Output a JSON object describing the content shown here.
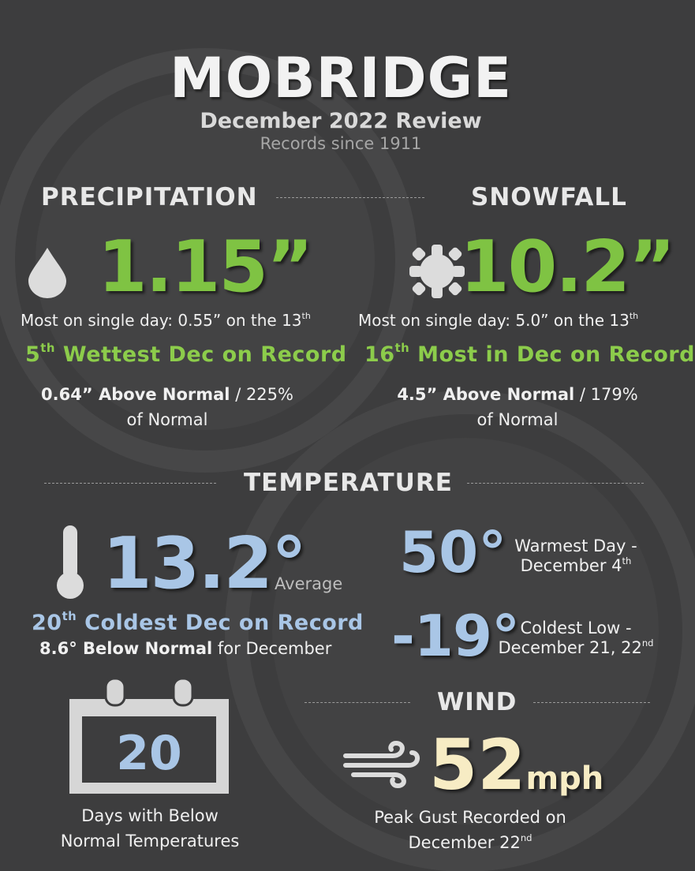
{
  "header": {
    "title": "MOBRIDGE",
    "subtitle": "December 2022 Review",
    "records": "Records since 1911"
  },
  "precipitation": {
    "heading": "PRECIPITATION",
    "value": "1.15”",
    "single_day_prefix": "Most on single day: 0.55” on the 13",
    "single_day_suffix": "th",
    "rank_num": "5",
    "rank_sup": "th",
    "rank_text": " Wettest Dec on Record",
    "above_bold": "0.64” Above Normal",
    "above_rest": " / 225%",
    "of_normal": "of Normal"
  },
  "snowfall": {
    "heading": "SNOWFALL",
    "value": "10.2”",
    "single_day_prefix": "Most on single day: 5.0” on the 13",
    "single_day_suffix": "th",
    "rank_num": "16",
    "rank_sup": "th",
    "rank_text": " Most in Dec on Record",
    "above_bold": "4.5” Above Normal",
    "above_rest": " / 179%",
    "of_normal": "of Normal"
  },
  "temperature": {
    "heading": "TEMPERATURE",
    "average_value": "13.2°",
    "average_label": "Average",
    "rank_num": "20",
    "rank_sup": "th",
    "rank_text": " Coldest Dec on Record",
    "below_bold": "8.6° Below Normal",
    "below_rest": " for December",
    "warmest_value": "50°",
    "warmest_label_1": "Warmest Day -",
    "warmest_label_2": "December 4",
    "warmest_sup": "th",
    "coldest_value": "-19°",
    "coldest_label_1": "Coldest Low -",
    "coldest_label_2": "December 21, 22",
    "coldest_sup": "nd"
  },
  "below_normal_days": {
    "value": "20",
    "label_1": "Days with Below",
    "label_2": "Normal Temperatures"
  },
  "wind": {
    "heading": "WIND",
    "value": "52",
    "unit": "mph",
    "label_1": "Peak Gust Recorded on",
    "label_2": "December 22",
    "label_sup": "nd"
  },
  "colors": {
    "background": "#3d3d3e",
    "green": "#7fc343",
    "blue": "#a9c6e6",
    "cream": "#f7ecc4"
  },
  "icons": [
    "raindrop-icon",
    "snowflake-icon",
    "thermometer-icon",
    "calendar-icon",
    "wind-icon"
  ]
}
